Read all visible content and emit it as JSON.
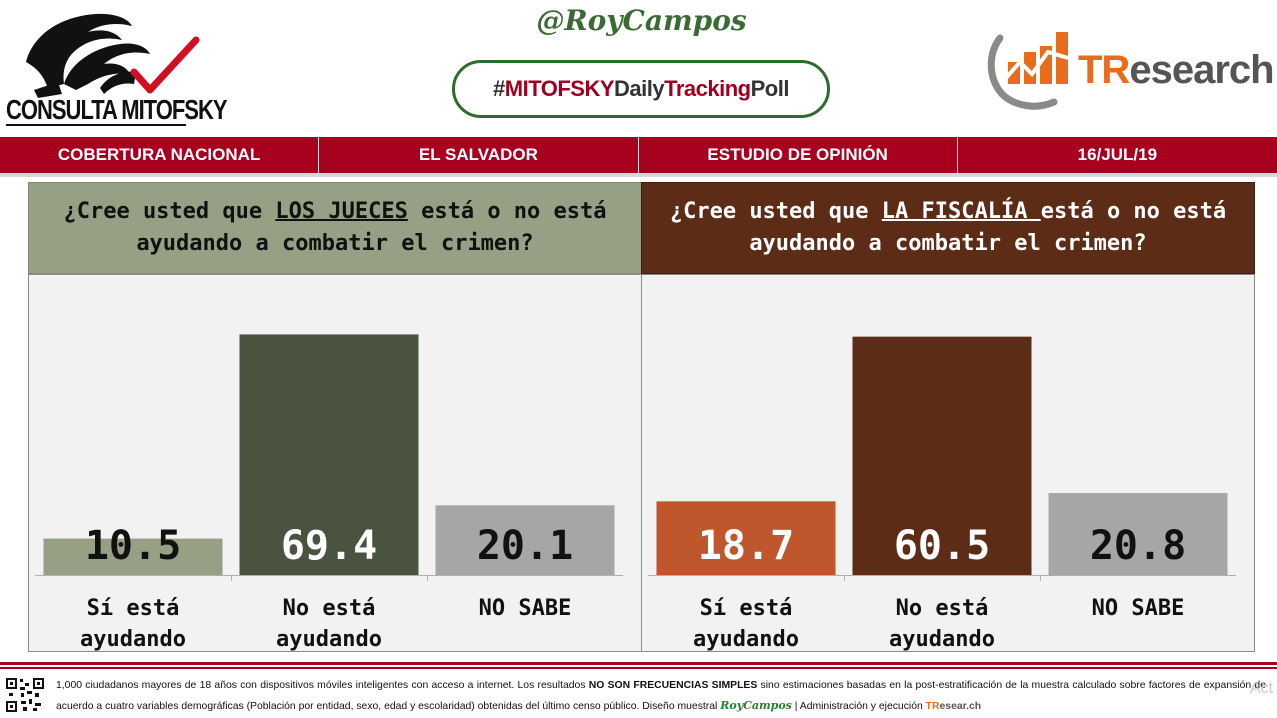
{
  "header": {
    "mitofsky_logo_text": "CONSULTA MITOFSKY",
    "handle": "@RoyCampos",
    "hashtag": {
      "part1": "#",
      "part2": "MITOFSKY",
      "part3": "Daily",
      "part4": "Tracking",
      "part5": "Poll"
    },
    "tresearch": {
      "t": "TR",
      "rest": "esearch"
    }
  },
  "info_bar": [
    "COBERTURA NACIONAL",
    "EL SALVADOR",
    "ESTUDIO DE OPINIÓN",
    "16/JUL/19"
  ],
  "colors": {
    "brand_red": "#a8001f",
    "left_header": "#95a084",
    "right_header": "#5c2c17",
    "si_left": "#95a084",
    "no_left": "#4a5240",
    "ns": "#a6a6a6",
    "si_right": "#c0572c",
    "no_right": "#5c2c17"
  },
  "panels": {
    "left": {
      "q_pre": "¿Cree usted que ",
      "q_key": "LOS JUECES",
      "q_post": " está o no está ayudando a combatir el crimen?"
    },
    "right": {
      "q_pre": "¿Cree usted que ",
      "q_key": "LA FISCALÍA ",
      "q_post": " está o no está ayudando a combatir el crimen?"
    }
  },
  "chart_data": [
    {
      "type": "bar",
      "title": "¿Cree usted que LOS JUECES está o no está ayudando a combatir el crimen?",
      "categories": [
        "Sí está ayudando",
        "No está ayudando",
        "NO SABE"
      ],
      "category_lines": [
        [
          "Sí está",
          "ayudando"
        ],
        [
          "No está",
          "ayudando"
        ],
        [
          "NO SABE"
        ]
      ],
      "values": [
        10.5,
        69.4,
        20.1
      ],
      "labels": [
        "10.5",
        "69.4",
        "20.1"
      ],
      "colors": [
        "#95a084",
        "#4a5240",
        "#a6a6a6"
      ],
      "label_colors": [
        "#111111",
        "#ffffff",
        "#111111"
      ],
      "ylim": [
        0,
        75
      ],
      "grid": false,
      "legend": "none"
    },
    {
      "type": "bar",
      "title": "¿Cree usted que LA FISCALÍA está o no está ayudando a combatir el crimen?",
      "categories": [
        "Sí está ayudando",
        "No está ayudando",
        "NO SABE"
      ],
      "category_lines": [
        [
          "Sí está",
          "ayudando"
        ],
        [
          "No está",
          "ayudando"
        ],
        [
          "NO SABE"
        ]
      ],
      "values": [
        18.7,
        60.5,
        20.8
      ],
      "labels": [
        "18.7",
        "60.5",
        "20.8"
      ],
      "colors": [
        "#c0572c",
        "#5c2c17",
        "#a6a6a6"
      ],
      "label_colors": [
        "#ffffff",
        "#ffffff",
        "#111111"
      ],
      "ylim": [
        0,
        66
      ],
      "grid": false,
      "legend": "none"
    }
  ],
  "footer": {
    "line1_a": "1,000 ciudadanos mayores de 18 años con dispositivos móviles inteligentes con acceso a internet. Los resultados ",
    "line1_b": "NO SON FRECUENCIAS SIMPLES",
    "line1_c": " sino estimaciones basadas en la post-estratificación de la muestra calculado sobre factores de expansión de acuerdo a cuatro variables demográficas (Población por entidad, sexo, edad y escolaridad) obtenidas del último censo público. Diseño muestral ",
    "roy": "RoyCampos",
    "line2_mid": "  | Administración y ejecución ",
    "tre_t": "TR",
    "tre_rest": "esear.ch"
  },
  "activate_hint": "Act"
}
